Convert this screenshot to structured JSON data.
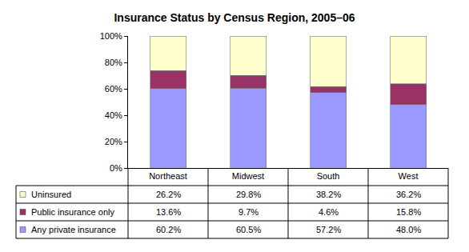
{
  "chart_data": {
    "type": "bar",
    "title": "Insurance Status by Census Region, 2005–06",
    "categories": [
      "Northeast",
      "Midwest",
      "South",
      "West"
    ],
    "series": [
      {
        "name": "Any private insurance",
        "color": "#9999ff",
        "values": [
          60.2,
          60.5,
          57.2,
          48.0
        ],
        "value_labels": [
          "60.2%",
          "60.5%",
          "57.2%",
          "48.0%"
        ]
      },
      {
        "name": "Public insurance only",
        "color": "#993366",
        "values": [
          13.6,
          9.7,
          4.6,
          15.8
        ],
        "value_labels": [
          "13.6%",
          "9.7%",
          "4.6%",
          "15.8%"
        ]
      },
      {
        "name": "Uninsured",
        "color": "#ffffcc",
        "values": [
          26.2,
          29.8,
          38.2,
          36.2
        ],
        "value_labels": [
          "26.2%",
          "29.8%",
          "38.2%",
          "36.2%"
        ]
      }
    ],
    "stacked": true,
    "ylim": [
      0,
      100
    ],
    "yticks": [
      {
        "value": 0,
        "label": "0%"
      },
      {
        "value": 20,
        "label": "20%"
      },
      {
        "value": 40,
        "label": "40%"
      },
      {
        "value": 60,
        "label": "60%"
      },
      {
        "value": 80,
        "label": "80%"
      },
      {
        "value": 100,
        "label": "100%"
      }
    ],
    "grid": false,
    "data_labels": false
  }
}
